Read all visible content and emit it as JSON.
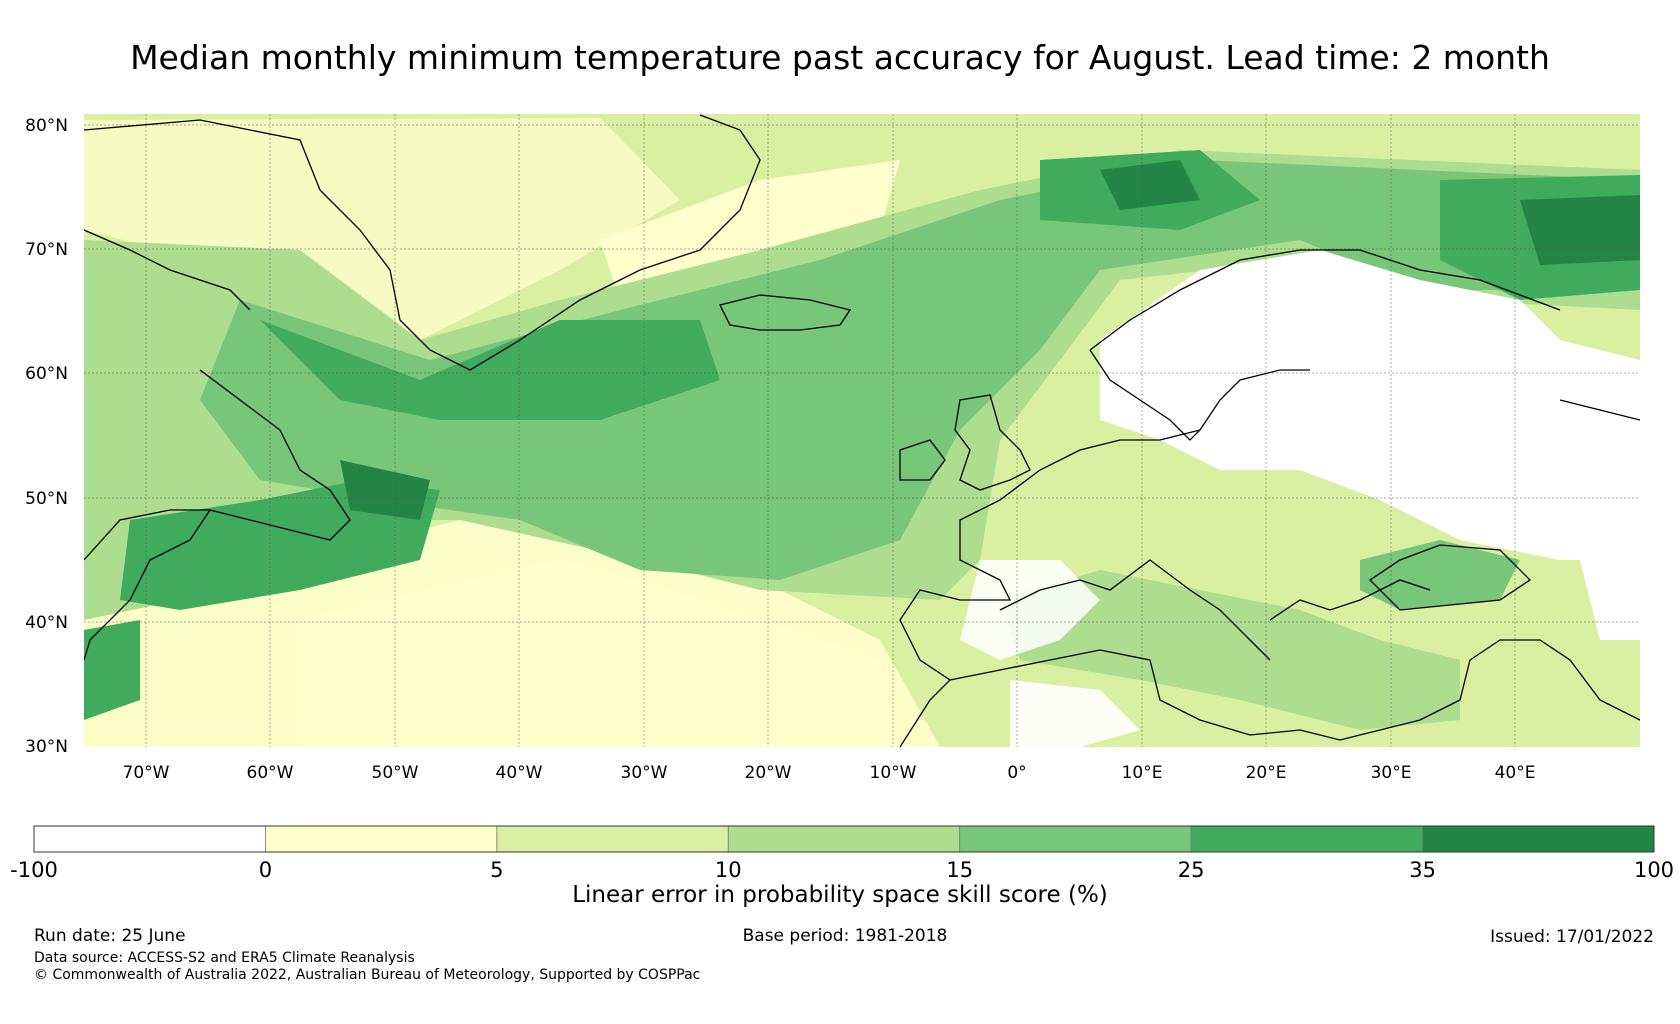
{
  "title": "Median monthly minimum temperature past accuracy for August. Lead time: 2 month",
  "map": {
    "lat_labels": [
      "80°N",
      "70°N",
      "60°N",
      "50°N",
      "40°N",
      "30°N"
    ],
    "lon_labels": [
      "70°W",
      "60°W",
      "50°W",
      "40°W",
      "30°W",
      "20°W",
      "10°W",
      "0°",
      "10°E",
      "20°E",
      "30°E",
      "40°E"
    ],
    "lat_range": [
      30,
      81
    ],
    "lon_range": [
      -75,
      50
    ]
  },
  "colorbar": {
    "boundaries": [
      "-100",
      "0",
      "5",
      "10",
      "15",
      "25",
      "35",
      "100"
    ],
    "colors": [
      "#ffffff",
      "#ffffcc",
      "#d9f0a3",
      "#addd8e",
      "#78c679",
      "#41ab5d",
      "#238443"
    ],
    "label": "Linear error in probability space skill score (%)"
  },
  "footer": {
    "run_date": "Run date: 25 June",
    "base_period": "Base period: 1981-2018",
    "issued": "Issued: 17/01/2022",
    "data_source": "Data source: ACCESS-S2 and ERA5 Climate Reanalysis",
    "copyright": "© Commonwealth of Australia 2022, Australian Bureau of Meteorology, Supported by COSPPac"
  }
}
